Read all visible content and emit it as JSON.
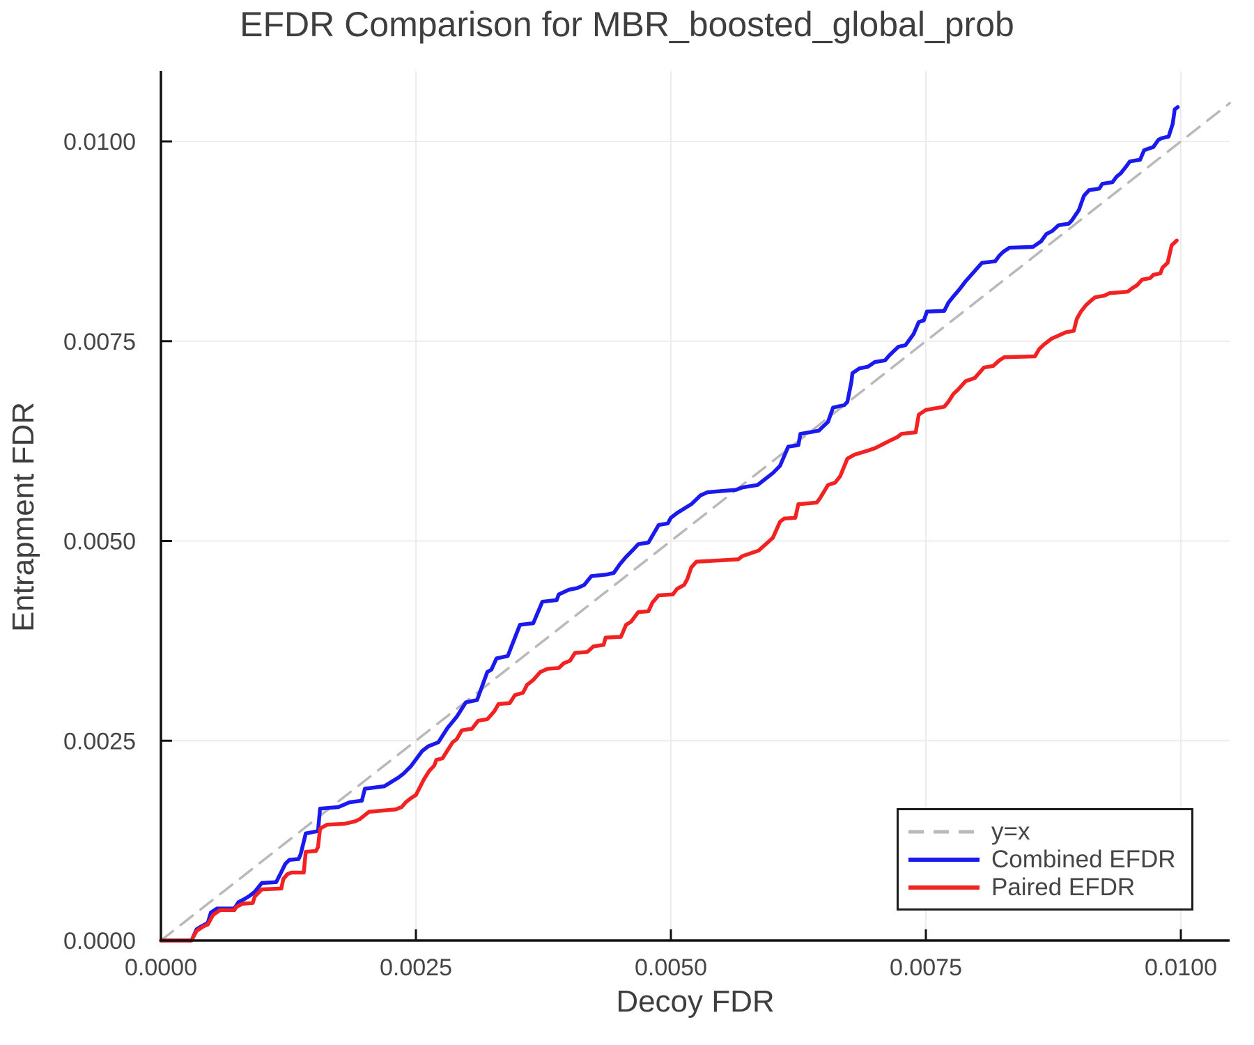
{
  "figure": {
    "title": "EFDR Comparison for MBR_boosted_global_prob"
  },
  "chart_data": {
    "type": "line",
    "title": "EFDR Comparison for MBR_boosted_global_prob",
    "xlabel": "Decoy FDR",
    "ylabel": "Entrapment FDR",
    "xlim": [
      0.0,
      0.01048
    ],
    "ylim": [
      0.0,
      0.01088
    ],
    "grid": true,
    "x_ticks": [
      0.0,
      0.0025,
      0.005,
      0.0075,
      0.01
    ],
    "x_tick_labels": [
      "0.0000",
      "0.0025",
      "0.0050",
      "0.0075",
      "0.0100"
    ],
    "y_ticks": [
      0.0,
      0.0025,
      0.005,
      0.0075,
      0.01
    ],
    "y_tick_labels": [
      "0.0000",
      "0.0025",
      "0.0050",
      "0.0075",
      "0.0100"
    ],
    "legend": {
      "position": "lower right",
      "entries": [
        "y=x",
        "Combined EFDR",
        "Paired EFDR"
      ]
    },
    "colors": {
      "reference": "#b9b9b9",
      "combined": "#1a1aee",
      "paired": "#f32222",
      "gridline": "#ececec",
      "axis": "#111111",
      "text": "#454545"
    },
    "series": [
      {
        "name": "y=x",
        "type": "reference-line",
        "style": "dashed",
        "color": "#b9b9b9",
        "points": [
          [
            0.0,
            0.0
          ],
          [
            0.01048,
            0.01048
          ]
        ]
      },
      {
        "name": "Combined EFDR",
        "type": "line",
        "style": "solid",
        "color": "#1a1aee",
        "points": [
          [
            0.0,
            0.0
          ],
          [
            0.0003,
            0.0
          ],
          [
            0.00035,
            0.00014
          ],
          [
            0.0004,
            0.00018
          ],
          [
            0.00046,
            0.00022
          ],
          [
            0.00049,
            0.00035
          ],
          [
            0.00055,
            0.0004
          ],
          [
            0.00072,
            0.0004
          ],
          [
            0.00076,
            0.00048
          ],
          [
            0.00082,
            0.00052
          ],
          [
            0.00087,
            0.00056
          ],
          [
            0.00092,
            0.00061
          ],
          [
            0.00099,
            0.00072
          ],
          [
            0.00113,
            0.00073
          ],
          [
            0.00117,
            0.00083
          ],
          [
            0.00122,
            0.00096
          ],
          [
            0.00126,
            0.00101
          ],
          [
            0.00135,
            0.00102
          ],
          [
            0.00137,
            0.00108
          ],
          [
            0.00142,
            0.00134
          ],
          [
            0.00154,
            0.00137
          ],
          [
            0.00156,
            0.00165
          ],
          [
            0.00174,
            0.00167
          ],
          [
            0.00185,
            0.00173
          ],
          [
            0.00197,
            0.00175
          ],
          [
            0.002,
            0.0019
          ],
          [
            0.00219,
            0.00193
          ],
          [
            0.00233,
            0.00204
          ],
          [
            0.00238,
            0.00209
          ],
          [
            0.00245,
            0.00218
          ],
          [
            0.00256,
            0.00237
          ],
          [
            0.00262,
            0.00243
          ],
          [
            0.00272,
            0.00248
          ],
          [
            0.00281,
            0.00266
          ],
          [
            0.0029,
            0.0028
          ],
          [
            0.00299,
            0.00298
          ],
          [
            0.0031,
            0.00301
          ],
          [
            0.0032,
            0.00336
          ],
          [
            0.00324,
            0.00339
          ],
          [
            0.00329,
            0.00353
          ],
          [
            0.0034,
            0.00356
          ],
          [
            0.00352,
            0.00395
          ],
          [
            0.00365,
            0.00397
          ],
          [
            0.0037,
            0.00412
          ],
          [
            0.00374,
            0.00424
          ],
          [
            0.00388,
            0.00426
          ],
          [
            0.0039,
            0.00433
          ],
          [
            0.004,
            0.00439
          ],
          [
            0.00408,
            0.00441
          ],
          [
            0.00415,
            0.00445
          ],
          [
            0.00422,
            0.00456
          ],
          [
            0.00437,
            0.00458
          ],
          [
            0.00444,
            0.0046
          ],
          [
            0.0045,
            0.00471
          ],
          [
            0.00456,
            0.0048
          ],
          [
            0.00463,
            0.00489
          ],
          [
            0.00468,
            0.00496
          ],
          [
            0.00478,
            0.00498
          ],
          [
            0.00488,
            0.0052
          ],
          [
            0.00497,
            0.00522
          ],
          [
            0.005,
            0.00529
          ],
          [
            0.00506,
            0.00535
          ],
          [
            0.0052,
            0.00546
          ],
          [
            0.00529,
            0.00557
          ],
          [
            0.00536,
            0.00561
          ],
          [
            0.00564,
            0.00564
          ],
          [
            0.0057,
            0.00567
          ],
          [
            0.00585,
            0.0057
          ],
          [
            0.00591,
            0.00576
          ],
          [
            0.006,
            0.00585
          ],
          [
            0.00607,
            0.00594
          ],
          [
            0.0061,
            0.00603
          ],
          [
            0.00615,
            0.00618
          ],
          [
            0.00625,
            0.0062
          ],
          [
            0.00627,
            0.00634
          ],
          [
            0.00645,
            0.00638
          ],
          [
            0.00649,
            0.00643
          ],
          [
            0.00654,
            0.00649
          ],
          [
            0.00659,
            0.00667
          ],
          [
            0.0067,
            0.0067
          ],
          [
            0.00673,
            0.00674
          ],
          [
            0.00677,
            0.00699
          ],
          [
            0.00678,
            0.0071
          ],
          [
            0.00685,
            0.00716
          ],
          [
            0.00693,
            0.00718
          ],
          [
            0.007,
            0.00724
          ],
          [
            0.0071,
            0.00726
          ],
          [
            0.00714,
            0.00732
          ],
          [
            0.00718,
            0.00737
          ],
          [
            0.00723,
            0.00743
          ],
          [
            0.0073,
            0.00745
          ],
          [
            0.00734,
            0.00752
          ],
          [
            0.00738,
            0.00759
          ],
          [
            0.00743,
            0.00774
          ],
          [
            0.00748,
            0.00776
          ],
          [
            0.00751,
            0.00787
          ],
          [
            0.00768,
            0.00788
          ],
          [
            0.00772,
            0.00798
          ],
          [
            0.00777,
            0.00806
          ],
          [
            0.00783,
            0.00815
          ],
          [
            0.00789,
            0.00825
          ],
          [
            0.00798,
            0.00838
          ],
          [
            0.00805,
            0.00848
          ],
          [
            0.00818,
            0.0085
          ],
          [
            0.00822,
            0.00857
          ],
          [
            0.00826,
            0.00862
          ],
          [
            0.00832,
            0.00867
          ],
          [
            0.00855,
            0.00868
          ],
          [
            0.00863,
            0.00875
          ],
          [
            0.00868,
            0.00884
          ],
          [
            0.00874,
            0.00888
          ],
          [
            0.0088,
            0.00895
          ],
          [
            0.0089,
            0.00897
          ],
          [
            0.00893,
            0.00901
          ],
          [
            0.009,
            0.00914
          ],
          [
            0.00905,
            0.00932
          ],
          [
            0.0091,
            0.00939
          ],
          [
            0.0092,
            0.00941
          ],
          [
            0.00923,
            0.00947
          ],
          [
            0.00933,
            0.00949
          ],
          [
            0.00937,
            0.00956
          ],
          [
            0.00941,
            0.0096
          ],
          [
            0.00946,
            0.00968
          ],
          [
            0.0095,
            0.00975
          ],
          [
            0.0096,
            0.00977
          ],
          [
            0.00964,
            0.00989
          ],
          [
            0.00973,
            0.00993
          ],
          [
            0.00978,
            0.01002
          ],
          [
            0.00981,
            0.01004
          ],
          [
            0.00988,
            0.01006
          ],
          [
            0.00992,
            0.01022
          ],
          [
            0.00994,
            0.0104
          ],
          [
            0.00997,
            0.01043
          ]
        ]
      },
      {
        "name": "Paired EFDR",
        "type": "line",
        "style": "solid",
        "color": "#f32222",
        "points": [
          [
            0.0,
            0.0
          ],
          [
            0.0003,
            0.0
          ],
          [
            0.00035,
            0.00012
          ],
          [
            0.00042,
            0.00018
          ],
          [
            0.00046,
            0.0002
          ],
          [
            0.00051,
            0.00032
          ],
          [
            0.00058,
            0.00038
          ],
          [
            0.00072,
            0.00038
          ],
          [
            0.00074,
            0.00042
          ],
          [
            0.0008,
            0.00046
          ],
          [
            0.0009,
            0.00047
          ],
          [
            0.00092,
            0.00055
          ],
          [
            0.00099,
            0.00064
          ],
          [
            0.00118,
            0.00065
          ],
          [
            0.0012,
            0.00077
          ],
          [
            0.00124,
            0.00083
          ],
          [
            0.00128,
            0.00085
          ],
          [
            0.0014,
            0.00085
          ],
          [
            0.00142,
            0.00111
          ],
          [
            0.00152,
            0.00112
          ],
          [
            0.00154,
            0.00117
          ],
          [
            0.00156,
            0.0014
          ],
          [
            0.00163,
            0.00145
          ],
          [
            0.0018,
            0.00146
          ],
          [
            0.0019,
            0.00149
          ],
          [
            0.00195,
            0.00152
          ],
          [
            0.00199,
            0.00156
          ],
          [
            0.00204,
            0.00161
          ],
          [
            0.0023,
            0.00164
          ],
          [
            0.00236,
            0.00167
          ],
          [
            0.0024,
            0.00173
          ],
          [
            0.00245,
            0.00178
          ],
          [
            0.0025,
            0.00182
          ],
          [
            0.00258,
            0.00202
          ],
          [
            0.00263,
            0.00212
          ],
          [
            0.00268,
            0.00219
          ],
          [
            0.0027,
            0.00226
          ],
          [
            0.00276,
            0.00228
          ],
          [
            0.00286,
            0.00248
          ],
          [
            0.0029,
            0.00252
          ],
          [
            0.00295,
            0.00263
          ],
          [
            0.00305,
            0.00265
          ],
          [
            0.00311,
            0.00275
          ],
          [
            0.0032,
            0.00277
          ],
          [
            0.00327,
            0.00287
          ],
          [
            0.00331,
            0.00296
          ],
          [
            0.00342,
            0.00297
          ],
          [
            0.00347,
            0.00307
          ],
          [
            0.00355,
            0.0031
          ],
          [
            0.00359,
            0.0032
          ],
          [
            0.00365,
            0.00326
          ],
          [
            0.00372,
            0.00336
          ],
          [
            0.00379,
            0.0034
          ],
          [
            0.0039,
            0.00341
          ],
          [
            0.00395,
            0.00347
          ],
          [
            0.00401,
            0.0035
          ],
          [
            0.00406,
            0.0036
          ],
          [
            0.00418,
            0.00361
          ],
          [
            0.00424,
            0.00368
          ],
          [
            0.00434,
            0.0037
          ],
          [
            0.00436,
            0.00379
          ],
          [
            0.00451,
            0.0038
          ],
          [
            0.00456,
            0.00395
          ],
          [
            0.00461,
            0.00399
          ],
          [
            0.00468,
            0.00411
          ],
          [
            0.00478,
            0.00412
          ],
          [
            0.00482,
            0.00423
          ],
          [
            0.00488,
            0.00432
          ],
          [
            0.00502,
            0.00433
          ],
          [
            0.00506,
            0.0044
          ],
          [
            0.00513,
            0.00445
          ],
          [
            0.00516,
            0.00452
          ],
          [
            0.0052,
            0.00467
          ],
          [
            0.00525,
            0.00474
          ],
          [
            0.00566,
            0.00477
          ],
          [
            0.0057,
            0.00481
          ],
          [
            0.00586,
            0.00488
          ],
          [
            0.00593,
            0.00496
          ],
          [
            0.006,
            0.00504
          ],
          [
            0.00607,
            0.00524
          ],
          [
            0.00611,
            0.00528
          ],
          [
            0.00622,
            0.00529
          ],
          [
            0.00625,
            0.00546
          ],
          [
            0.00643,
            0.00548
          ],
          [
            0.00646,
            0.00553
          ],
          [
            0.00654,
            0.0057
          ],
          [
            0.00661,
            0.00573
          ],
          [
            0.00666,
            0.00581
          ],
          [
            0.00673,
            0.00603
          ],
          [
            0.0068,
            0.00608
          ],
          [
            0.00693,
            0.00613
          ],
          [
            0.007,
            0.00616
          ],
          [
            0.00714,
            0.00625
          ],
          [
            0.00722,
            0.0063
          ],
          [
            0.00726,
            0.00634
          ],
          [
            0.0074,
            0.00636
          ],
          [
            0.00743,
            0.00658
          ],
          [
            0.0075,
            0.00664
          ],
          [
            0.00768,
            0.00668
          ],
          [
            0.00772,
            0.00674
          ],
          [
            0.00777,
            0.00684
          ],
          [
            0.00782,
            0.0069
          ],
          [
            0.00789,
            0.007
          ],
          [
            0.00798,
            0.00704
          ],
          [
            0.00807,
            0.00717
          ],
          [
            0.00816,
            0.00719
          ],
          [
            0.00822,
            0.00726
          ],
          [
            0.00827,
            0.0073
          ],
          [
            0.00857,
            0.00731
          ],
          [
            0.00861,
            0.0074
          ],
          [
            0.00866,
            0.00746
          ],
          [
            0.00873,
            0.00753
          ],
          [
            0.0088,
            0.00757
          ],
          [
            0.00887,
            0.00761
          ],
          [
            0.00895,
            0.00763
          ],
          [
            0.00898,
            0.00778
          ],
          [
            0.00902,
            0.00787
          ],
          [
            0.00907,
            0.00795
          ],
          [
            0.00912,
            0.00801
          ],
          [
            0.00916,
            0.00805
          ],
          [
            0.00925,
            0.00807
          ],
          [
            0.0093,
            0.0081
          ],
          [
            0.00948,
            0.00812
          ],
          [
            0.00952,
            0.00816
          ],
          [
            0.00957,
            0.0082
          ],
          [
            0.00962,
            0.00827
          ],
          [
            0.0097,
            0.00829
          ],
          [
            0.00973,
            0.00833
          ],
          [
            0.0098,
            0.00835
          ],
          [
            0.00982,
            0.00842
          ],
          [
            0.00987,
            0.00848
          ],
          [
            0.00991,
            0.0087
          ],
          [
            0.00996,
            0.00876
          ]
        ]
      }
    ]
  }
}
